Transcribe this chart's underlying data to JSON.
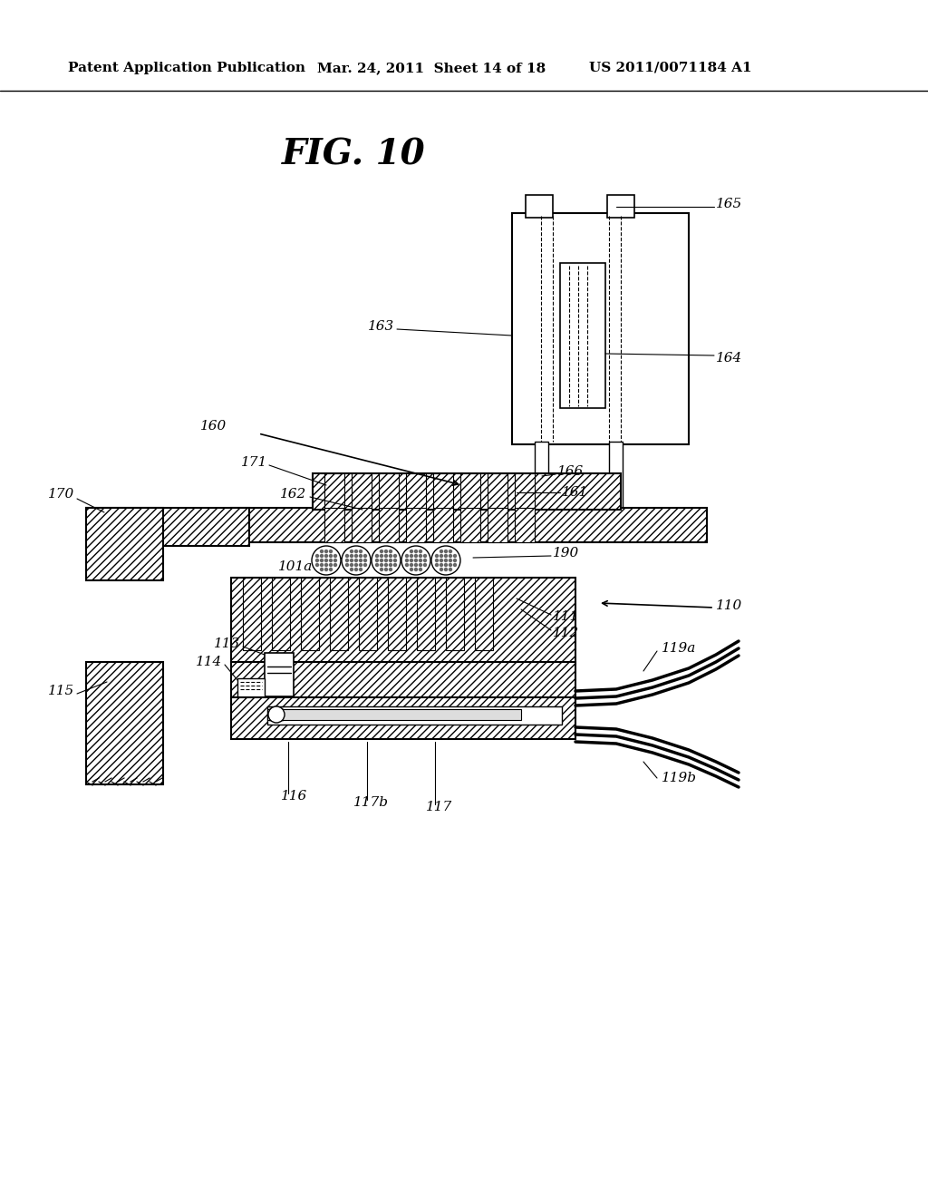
{
  "header_left": "Patent Application Publication",
  "header_mid": "Mar. 24, 2011  Sheet 14 of 18",
  "header_right": "US 2011/0071184 A1",
  "fig_title": "FIG. 10",
  "bg_color": "#ffffff"
}
